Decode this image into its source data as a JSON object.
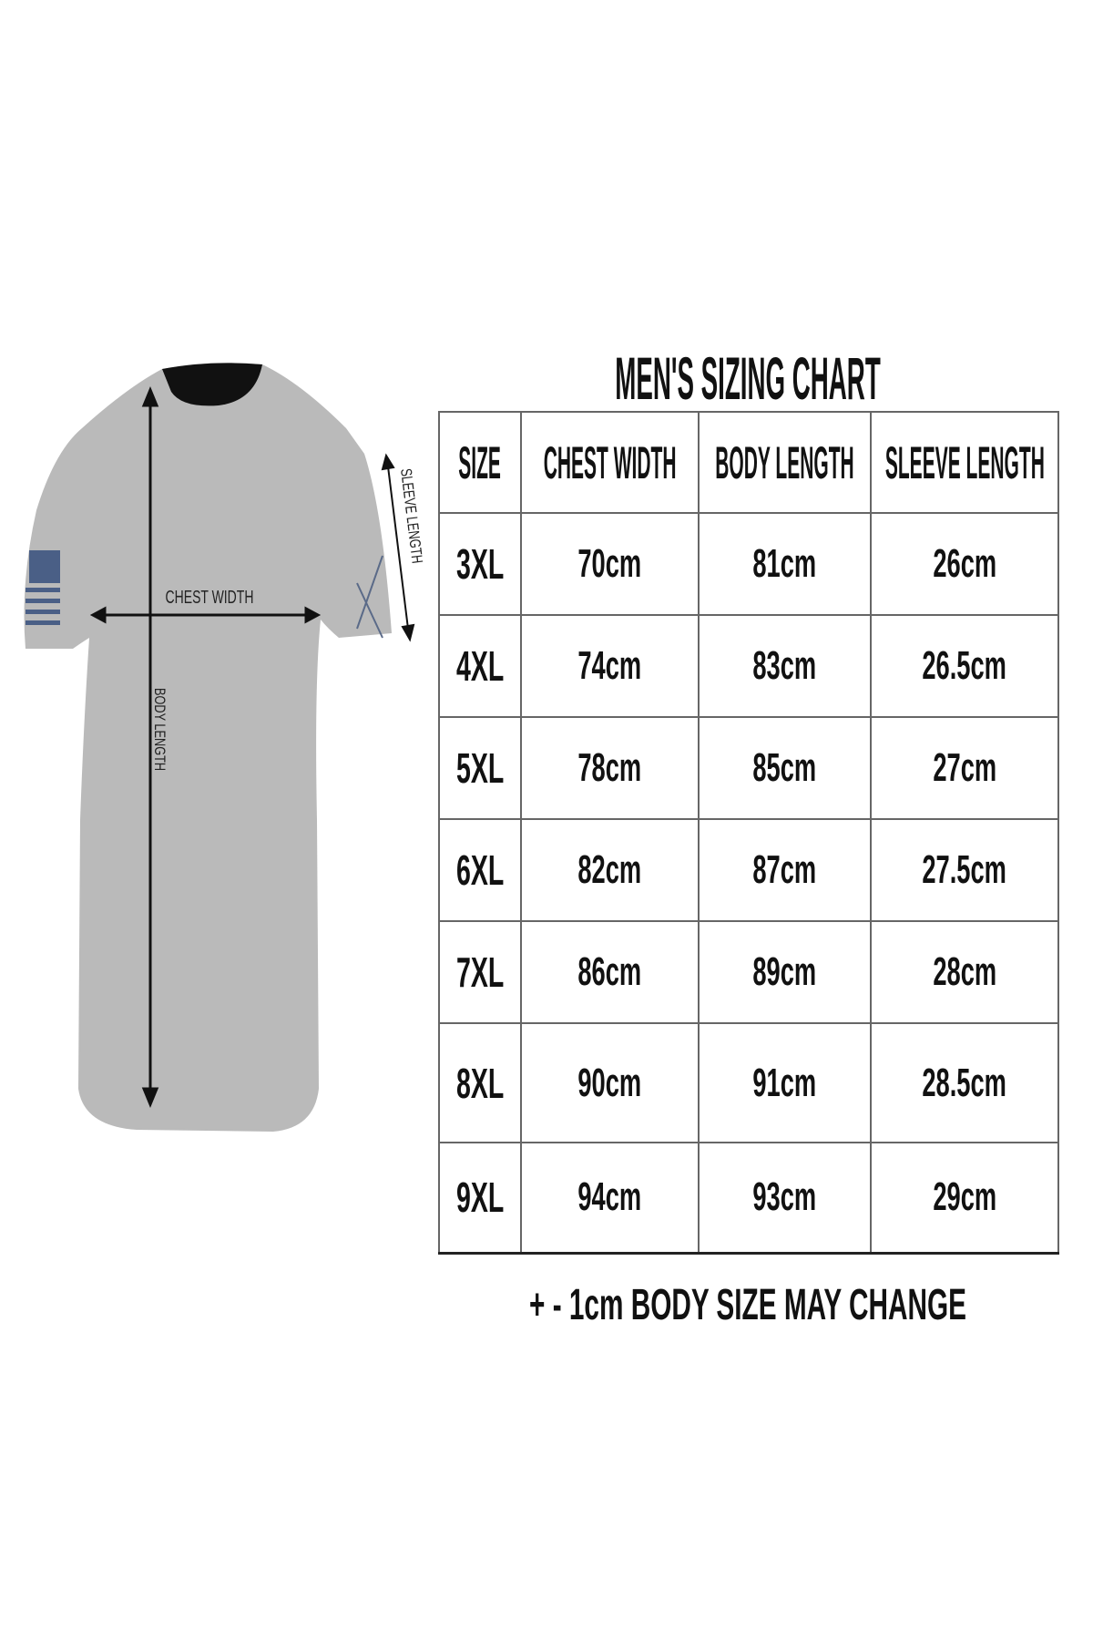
{
  "illustration": {
    "labels": {
      "chest_width": "CHEST WIDTH",
      "body_length": "BODY LENGTH",
      "sleeve_length": "SLEEVE LENGTH"
    },
    "colors": {
      "shirt": "#b9b9b7",
      "flag": "#4a5f86"
    }
  },
  "chart": {
    "title": "MEN'S SIZING CHART",
    "headers": [
      "SIZE",
      "CHEST WIDTH",
      "BODY LENGTH",
      "SLEEVE LENGTH"
    ],
    "rows": [
      [
        "3XL",
        "70cm",
        "81cm",
        "26cm"
      ],
      [
        "4XL",
        "74cm",
        "83cm",
        "26.5cm"
      ],
      [
        "5XL",
        "78cm",
        "85cm",
        "27cm"
      ],
      [
        "6XL",
        "82cm",
        "87cm",
        "27.5cm"
      ],
      [
        "7XL",
        "86cm",
        "89cm",
        "28cm"
      ],
      [
        "8XL",
        "90cm",
        "91cm",
        "28.5cm"
      ],
      [
        "9XL",
        "94cm",
        "93cm",
        "29cm"
      ]
    ],
    "footer": "+ - 1cm BODY SIZE MAY CHANGE"
  }
}
